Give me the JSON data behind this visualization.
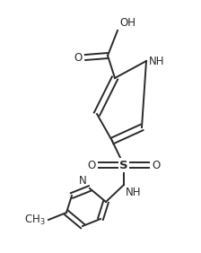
{
  "bg_color": "#ffffff",
  "line_color": "#2a2a2a",
  "line_width": 1.4,
  "font_size": 8.5,
  "figsize": [
    2.24,
    2.82
  ],
  "dpi": 100,
  "xlim": [
    0,
    224
  ],
  "ylim": [
    0,
    282
  ]
}
